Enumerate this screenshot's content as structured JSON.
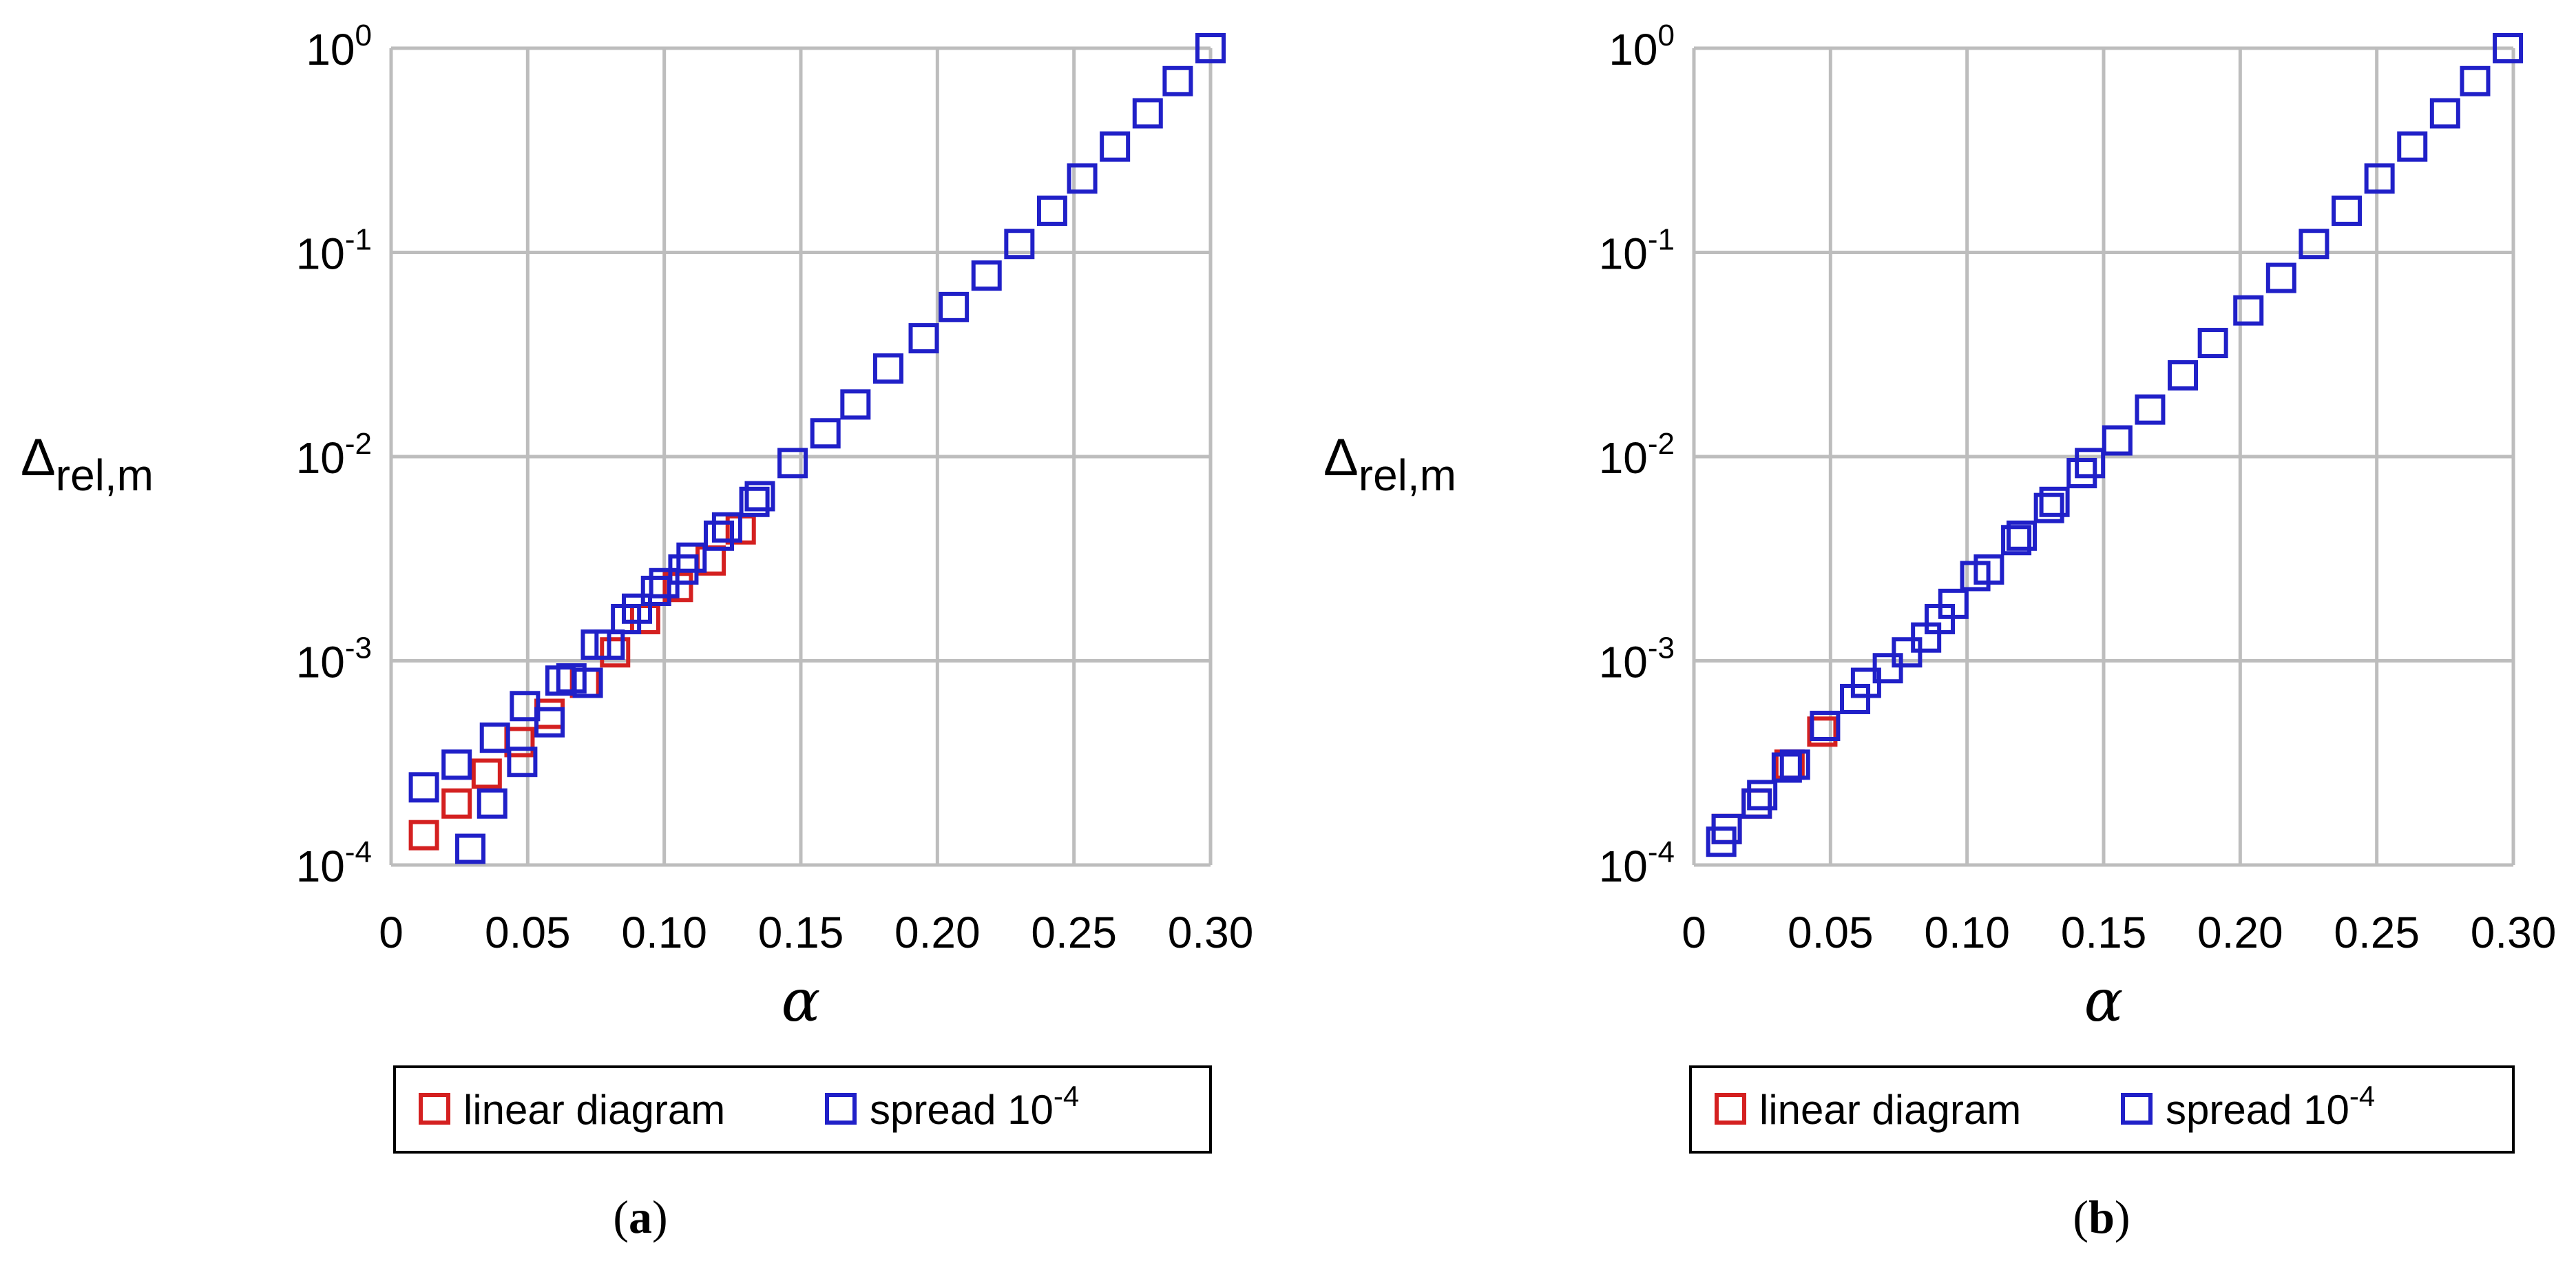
{
  "colors": {
    "linear": "#d42020",
    "spread": "#2020c8",
    "grid": "#bdbdbd"
  },
  "chart_data": [
    {
      "type": "scatter",
      "panel_label": "a",
      "xlabel": "α",
      "ylabel_main": "Δ",
      "ylabel_sub": "rel,m",
      "yscale": "log",
      "xlim": [
        0,
        0.3
      ],
      "ylim": [
        0.0001,
        1
      ],
      "xticks": [
        "0",
        "0.05",
        "0.10",
        "0.15",
        "0.20",
        "0.25",
        "0.30"
      ],
      "yticks": [
        {
          "base": "10",
          "exp": "-4",
          "value": 0.0001
        },
        {
          "base": "10",
          "exp": "-3",
          "value": 0.001
        },
        {
          "base": "10",
          "exp": "-2",
          "value": 0.01
        },
        {
          "base": "10",
          "exp": "-1",
          "value": 0.1
        },
        {
          "base": "10",
          "exp": "0",
          "value": 1
        }
      ],
      "legend": [
        {
          "label": "linear diagram",
          "label_sup": "",
          "series": "linear"
        },
        {
          "label": "spread 10",
          "label_sup": "-4",
          "series": "spread"
        }
      ],
      "series": [
        {
          "name": "linear diagram",
          "key": "linear",
          "x": [
            0.012,
            0.024,
            0.035,
            0.047,
            0.058,
            0.071,
            0.082,
            0.093,
            0.105,
            0.117,
            0.128
          ],
          "y": [
            0.00014,
            0.0002,
            0.00028,
            0.0004,
            0.00055,
            0.00078,
            0.0011,
            0.0016,
            0.0023,
            0.0031,
            0.0044
          ]
        },
        {
          "name": "spread 10-4",
          "key": "spread",
          "x": [
            0.012,
            0.024,
            0.029,
            0.037,
            0.038,
            0.048,
            0.049,
            0.058,
            0.062,
            0.066,
            0.072,
            0.075,
            0.08,
            0.086,
            0.09,
            0.097,
            0.1,
            0.107,
            0.11,
            0.12,
            0.123,
            0.133,
            0.135,
            0.147,
            0.159,
            0.17,
            0.182,
            0.195,
            0.206,
            0.218,
            0.23,
            0.242,
            0.253,
            0.265,
            0.277,
            0.288,
            0.3
          ],
          "y": [
            0.00024,
            0.00031,
            0.00012,
            0.0002,
            0.00042,
            0.00032,
            0.0006,
            0.0005,
            0.0008,
            0.00082,
            0.00078,
            0.0012,
            0.0012,
            0.0016,
            0.0018,
            0.0022,
            0.0024,
            0.0028,
            0.0032,
            0.0041,
            0.0045,
            0.006,
            0.0064,
            0.0093,
            0.013,
            0.018,
            0.027,
            0.038,
            0.054,
            0.077,
            0.11,
            0.16,
            0.23,
            0.33,
            0.48,
            0.69,
            1.0
          ]
        }
      ]
    },
    {
      "type": "scatter",
      "panel_label": "b",
      "xlabel": "α",
      "ylabel_main": "Δ",
      "ylabel_sub": "rel,m",
      "yscale": "log",
      "xlim": [
        0,
        0.3
      ],
      "ylim": [
        0.0001,
        1
      ],
      "xticks": [
        "0",
        "0.05",
        "0.10",
        "0.15",
        "0.20",
        "0.25",
        "0.30"
      ],
      "yticks": [
        {
          "base": "10",
          "exp": "-4",
          "value": 0.0001
        },
        {
          "base": "10",
          "exp": "-3",
          "value": 0.001
        },
        {
          "base": "10",
          "exp": "-2",
          "value": 0.01
        },
        {
          "base": "10",
          "exp": "-1",
          "value": 0.1
        },
        {
          "base": "10",
          "exp": "0",
          "value": 1
        }
      ],
      "legend": [
        {
          "label": "linear diagram",
          "label_sup": "",
          "series": "linear"
        },
        {
          "label": "spread 10",
          "label_sup": "-4",
          "series": "spread"
        }
      ],
      "series": [
        {
          "name": "linear diagram",
          "key": "linear",
          "x": [
            0.012,
            0.023,
            0.035,
            0.047
          ],
          "y": [
            0.00015,
            0.0002,
            0.00031,
            0.00045
          ]
        },
        {
          "name": "spread 10-4",
          "key": "spread",
          "x": [
            0.01,
            0.012,
            0.023,
            0.025,
            0.034,
            0.037,
            0.048,
            0.059,
            0.063,
            0.071,
            0.078,
            0.085,
            0.09,
            0.095,
            0.103,
            0.108,
            0.118,
            0.12,
            0.13,
            0.132,
            0.142,
            0.145,
            0.155,
            0.167,
            0.179,
            0.19,
            0.203,
            0.215,
            0.227,
            0.239,
            0.251,
            0.263,
            0.275,
            0.286,
            0.298
          ],
          "y": [
            0.00013,
            0.00015,
            0.0002,
            0.00022,
            0.0003,
            0.00031,
            0.00048,
            0.00065,
            0.00078,
            0.00092,
            0.0011,
            0.0013,
            0.0016,
            0.0019,
            0.0026,
            0.0028,
            0.0039,
            0.0041,
            0.0056,
            0.006,
            0.0083,
            0.0093,
            0.012,
            0.017,
            0.025,
            0.036,
            0.052,
            0.075,
            0.11,
            0.16,
            0.23,
            0.33,
            0.48,
            0.69,
            1.0
          ]
        }
      ]
    }
  ]
}
